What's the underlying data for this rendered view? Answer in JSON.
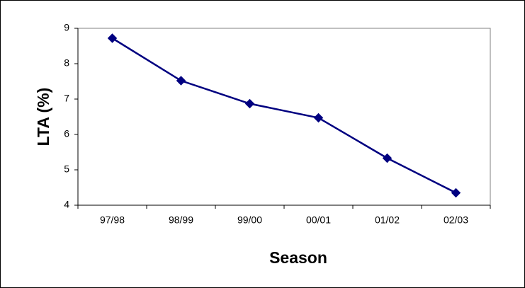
{
  "chart_data": {
    "type": "line",
    "x_label": "Season",
    "y_label": "LTA (%)",
    "categories": [
      "97/98",
      "98/99",
      "99/00",
      "00/01",
      "01/02",
      "02/03"
    ],
    "values": [
      8.72,
      7.52,
      6.87,
      6.47,
      5.33,
      4.35
    ],
    "color": "#000080",
    "ylim": [
      4,
      9
    ],
    "yticks": [
      4,
      5,
      6,
      7,
      8,
      9
    ]
  }
}
